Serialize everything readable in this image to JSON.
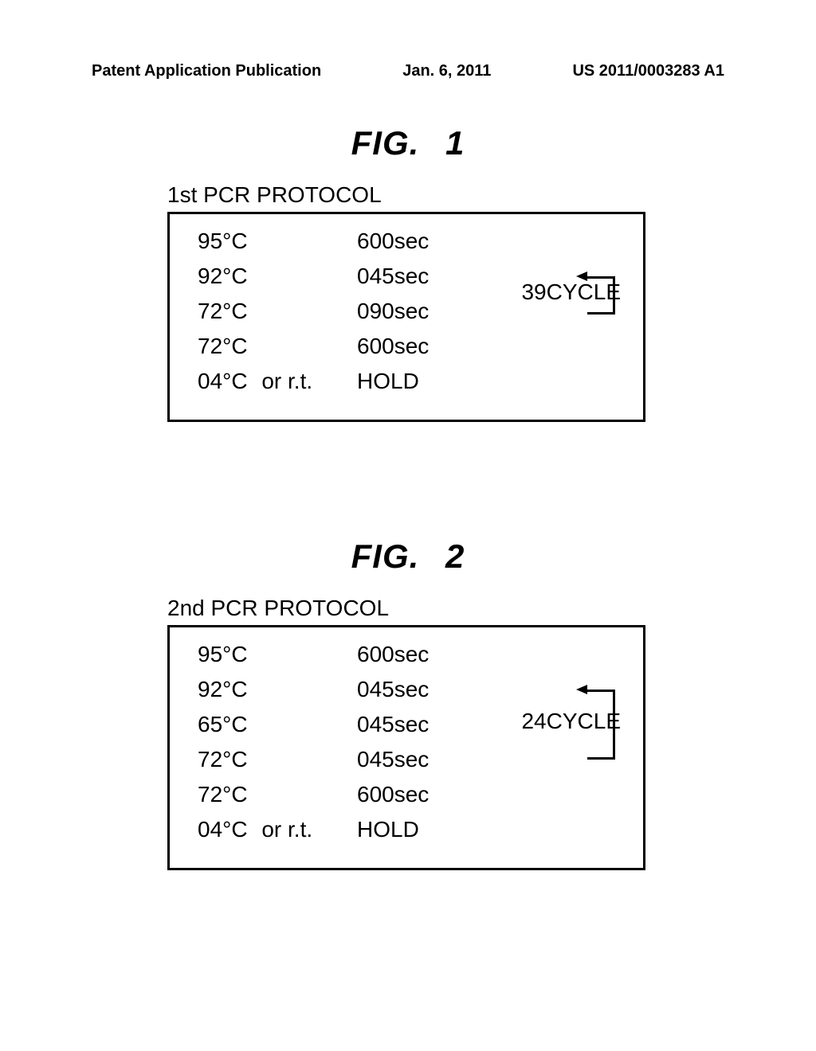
{
  "header": {
    "left": "Patent Application Publication",
    "center": "Jan. 6, 2011",
    "right": "US 2011/0003283 A1"
  },
  "fig1": {
    "label_prefix": "FIG.",
    "label_num": "1",
    "title": "1st PCR PROTOCOL",
    "rows": [
      {
        "temp": "95°C",
        "time": "600sec"
      },
      {
        "temp": "92°C",
        "time": "045sec"
      },
      {
        "temp": "72°C",
        "time": "090sec"
      },
      {
        "temp": "72°C",
        "time": "600sec"
      },
      {
        "temp": "04°C",
        "extra": "or r.t.",
        "time": "HOLD"
      }
    ],
    "cycle": "39CYCLE"
  },
  "fig2": {
    "label_prefix": "FIG.",
    "label_num": "2",
    "title": "2nd PCR PROTOCOL",
    "rows": [
      {
        "temp": "95°C",
        "time": "600sec"
      },
      {
        "temp": "92°C",
        "time": "045sec"
      },
      {
        "temp": "65°C",
        "time": "045sec"
      },
      {
        "temp": "72°C",
        "time": "045sec"
      },
      {
        "temp": "72°C",
        "time": "600sec"
      },
      {
        "temp": "04°C",
        "extra": "or r.t.",
        "time": "HOLD"
      }
    ],
    "cycle": "24CYCLE"
  },
  "styling": {
    "background_color": "#ffffff",
    "text_color": "#000000",
    "border_color": "#000000",
    "header_fontsize": 20,
    "figure_label_fontsize": 42,
    "protocol_fontsize": 28,
    "box_border_width": 3
  }
}
